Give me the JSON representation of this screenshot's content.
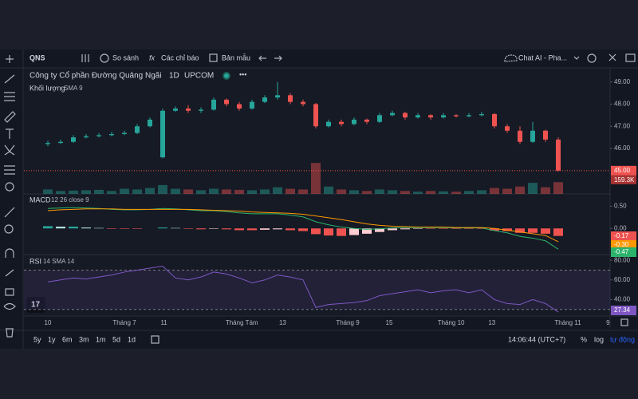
{
  "top_toolbar": {
    "symbol": "QNS",
    "buttons": [
      "So sánh",
      "Các chỉ báo",
      "Bản mẫu"
    ],
    "chat": "Chat AI - Pha..."
  },
  "legend": {
    "title": "Công ty Cổ phần Đường Quảng Ngãi",
    "interval": "1D",
    "exchange": "UPCOM",
    "volume": "Khối lượng",
    "volume_params": "SMA 9",
    "macd": "MACD",
    "macd_params": "12 26 close 9",
    "rsi": "RSI",
    "rsi_params": "14 SMA 14"
  },
  "chart_data": [
    {
      "type": "candlestick",
      "open": [
        46.2,
        46.25,
        46.3,
        46.5,
        46.55,
        46.6,
        46.65,
        46.7,
        47.0,
        45.6,
        47.7,
        47.8,
        47.7,
        47.75,
        48.2,
        48.0,
        47.8,
        48.1,
        48.3,
        48.4,
        48.1,
        48.0,
        47.0,
        47.2,
        47.1,
        47.3,
        47.2,
        47.5,
        47.6,
        47.4,
        47.5,
        47.4,
        47.5,
        47.45,
        47.5,
        47.55,
        47.0,
        46.8,
        46.3,
        46.8,
        46.4
      ],
      "high": [
        46.35,
        46.4,
        46.6,
        46.65,
        46.7,
        46.75,
        46.8,
        47.1,
        47.4,
        47.8,
        47.9,
        47.95,
        47.85,
        48.3,
        48.25,
        48.1,
        48.2,
        48.4,
        49.0,
        48.5,
        48.2,
        48.05,
        47.3,
        47.3,
        47.4,
        47.35,
        47.6,
        47.7,
        47.65,
        47.6,
        47.55,
        47.6,
        47.55,
        47.6,
        47.65,
        47.6,
        47.1,
        47.0,
        47.2,
        46.85,
        46.5
      ],
      "low": [
        46.1,
        46.2,
        46.25,
        46.45,
        46.5,
        46.55,
        46.6,
        46.65,
        46.95,
        45.55,
        47.65,
        47.6,
        47.6,
        47.7,
        47.9,
        47.7,
        47.75,
        48.05,
        48.2,
        48.0,
        47.9,
        46.9,
        46.95,
        47.0,
        47.05,
        47.1,
        47.15,
        47.45,
        47.3,
        47.35,
        47.3,
        47.35,
        47.4,
        47.4,
        47.45,
        46.9,
        46.7,
        46.2,
        46.25,
        46.3,
        44.95
      ],
      "close": [
        46.25,
        46.3,
        46.5,
        46.55,
        46.6,
        46.65,
        46.7,
        47.0,
        47.3,
        47.7,
        47.8,
        47.7,
        47.75,
        48.2,
        48.0,
        47.8,
        48.1,
        48.3,
        48.4,
        48.1,
        48.0,
        47.0,
        47.2,
        47.1,
        47.3,
        47.2,
        47.5,
        47.6,
        47.4,
        47.5,
        47.4,
        47.5,
        47.45,
        47.5,
        47.55,
        47.0,
        46.8,
        46.3,
        46.8,
        46.4,
        45.0
      ],
      "last_label": "45.00",
      "volume": [
        60,
        40,
        45,
        50,
        55,
        40,
        70,
        60,
        80,
        120,
        70,
        60,
        50,
        70,
        60,
        55,
        50,
        60,
        90,
        70,
        60,
        420,
        100,
        60,
        50,
        40,
        60,
        50,
        40,
        30,
        40,
        35,
        30,
        40,
        50,
        80,
        70,
        100,
        150,
        90,
        159.3
      ],
      "volume_label": "159.3K",
      "volume_ylim": [
        0,
        1700
      ],
      "up_color": "#26a69a",
      "down_color": "#ef5350",
      "ylim": [
        43.95,
        49.6
      ],
      "yticks": [
        {
          "value": 49,
          "label": "49.00"
        },
        {
          "value": 48,
          "label": "48.00"
        },
        {
          "value": 47,
          "label": "47.00"
        },
        {
          "value": 46,
          "label": "46.00"
        }
      ],
      "xticks": [
        {
          "value": 0,
          "label": "10"
        },
        {
          "value": 6,
          "label": "Tháng 7"
        },
        {
          "value": 9.1,
          "label": "11"
        },
        {
          "value": 15.2,
          "label": "Tháng Tám"
        },
        {
          "value": 18.4,
          "label": "13"
        },
        {
          "value": 23.5,
          "label": "Tháng 9"
        },
        {
          "value": 26.75,
          "label": "15"
        },
        {
          "value": 31.6,
          "label": "Tháng 10"
        },
        {
          "value": 34.8,
          "label": "13"
        },
        {
          "value": 40.75,
          "label": "Tháng 11"
        },
        {
          "value": 43.9,
          "label": "9"
        }
      ]
    },
    {
      "type": "macd",
      "series": [
        {
          "name": "MACD",
          "color": "#2bb36b",
          "values": [
            0.45,
            0.46,
            0.47,
            0.46,
            0.45,
            0.43,
            0.42,
            0.42,
            0.43,
            0.45,
            0.44,
            0.42,
            0.4,
            0.4,
            0.38,
            0.35,
            0.33,
            0.33,
            0.33,
            0.3,
            0.26,
            0.15,
            0.08,
            0.03,
            0.0,
            -0.02,
            -0.01,
            0.01,
            0.02,
            0.02,
            0.02,
            0.02,
            0.01,
            0.01,
            0.01,
            -0.05,
            -0.1,
            -0.18,
            -0.22,
            -0.28,
            -0.47
          ]
        },
        {
          "name": "Signal",
          "color": "#ff9800",
          "values": [
            0.4,
            0.42,
            0.43,
            0.44,
            0.44,
            0.44,
            0.43,
            0.43,
            0.43,
            0.43,
            0.43,
            0.43,
            0.42,
            0.41,
            0.4,
            0.39,
            0.37,
            0.36,
            0.35,
            0.34,
            0.32,
            0.28,
            0.24,
            0.2,
            0.15,
            0.1,
            0.07,
            0.05,
            0.04,
            0.03,
            0.03,
            0.03,
            0.02,
            0.02,
            0.02,
            0.0,
            -0.04,
            -0.08,
            -0.12,
            -0.16,
            -0.3
          ]
        }
      ],
      "histogram": [
        0.05,
        0.04,
        0.04,
        0.02,
        0.01,
        -0.01,
        -0.01,
        -0.01,
        0,
        0.02,
        0.01,
        -0.01,
        -0.02,
        -0.01,
        -0.02,
        -0.04,
        -0.04,
        -0.03,
        -0.02,
        -0.04,
        -0.06,
        -0.13,
        -0.16,
        -0.17,
        -0.15,
        -0.12,
        -0.08,
        -0.04,
        -0.02,
        -0.01,
        -0.01,
        -0.01,
        -0.01,
        -0.01,
        -0.01,
        -0.05,
        -0.06,
        -0.1,
        -0.1,
        -0.12,
        -0.17
      ],
      "last_labels": [
        "-0.17",
        "-0.30",
        "-0.47"
      ],
      "ylim": [
        -0.59,
        0.76
      ],
      "yticks": [
        {
          "value": 0.5,
          "label": "0.50"
        },
        {
          "value": 0,
          "label": "0.00"
        }
      ]
    },
    {
      "type": "rsi",
      "series": [
        {
          "name": "RSI",
          "color": "#7e57c2",
          "values": [
            58,
            60,
            62,
            61,
            63,
            65,
            68,
            70,
            72,
            74,
            62,
            60,
            63,
            68,
            66,
            62,
            57,
            60,
            65,
            63,
            60,
            32,
            35,
            36,
            37,
            39,
            44,
            46,
            48,
            50,
            47,
            49,
            50,
            47,
            50,
            40,
            36,
            35,
            40,
            36,
            27.34
          ]
        }
      ],
      "last_label": "27.34",
      "band": [
        30,
        70
      ],
      "ylim": [
        23.3,
        85
      ],
      "yticks": [
        {
          "value": 80,
          "label": "80.00"
        },
        {
          "value": 60,
          "label": "60.00"
        },
        {
          "value": 40,
          "label": "40.00"
        }
      ]
    }
  ],
  "bottom_toolbar": {
    "ranges": [
      "5y",
      "1y",
      "6m",
      "3m",
      "1m",
      "5d",
      "1d"
    ],
    "time": "14:06:44 (UTC+7)",
    "percent": "%",
    "log": "log",
    "auto": "tự động"
  }
}
